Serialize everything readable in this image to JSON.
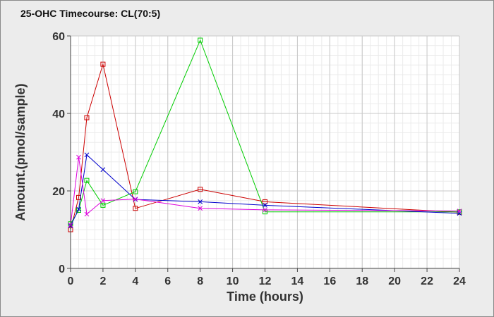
{
  "chart_data": {
    "type": "line",
    "title": "25-OHC Timecourse: CL(70:5)",
    "xlabel": "Time (hours)",
    "ylabel": "Amount.(pmol/sample)",
    "xlim": [
      0,
      24
    ],
    "ylim": [
      0,
      60
    ],
    "x_ticks": [
      0,
      2,
      4,
      6,
      8,
      10,
      12,
      14,
      16,
      18,
      20,
      22,
      24
    ],
    "y_ticks": [
      0,
      20,
      40,
      60
    ],
    "grid": true,
    "legend": "none",
    "series": [
      {
        "color": "#cc0000",
        "marker": "square",
        "x": [
          0,
          0.5,
          1,
          2,
          4,
          8,
          12,
          24
        ],
        "y": [
          10,
          18.3,
          38.9,
          52.7,
          15.5,
          20.4,
          17.2,
          14.5
        ]
      },
      {
        "color": "#00cc00",
        "marker": "square",
        "x": [
          0,
          0.5,
          1,
          2,
          4,
          8,
          12,
          24
        ],
        "y": [
          11.5,
          15,
          22.7,
          16.3,
          19.8,
          58.9,
          14.6,
          14.6
        ]
      },
      {
        "color": "#0000cc",
        "marker": "x",
        "x": [
          0,
          0.5,
          1,
          2,
          4,
          8,
          12,
          24
        ],
        "y": [
          11,
          15.3,
          29.3,
          25.5,
          17.8,
          17.2,
          16.3,
          14.2
        ]
      },
      {
        "color": "#dd00dd",
        "marker": "x",
        "x": [
          0,
          0.5,
          1,
          2,
          4,
          8,
          12,
          24
        ],
        "y": [
          11.2,
          28.7,
          14,
          17.5,
          17.9,
          15.5,
          15.1,
          14.8
        ]
      }
    ]
  }
}
